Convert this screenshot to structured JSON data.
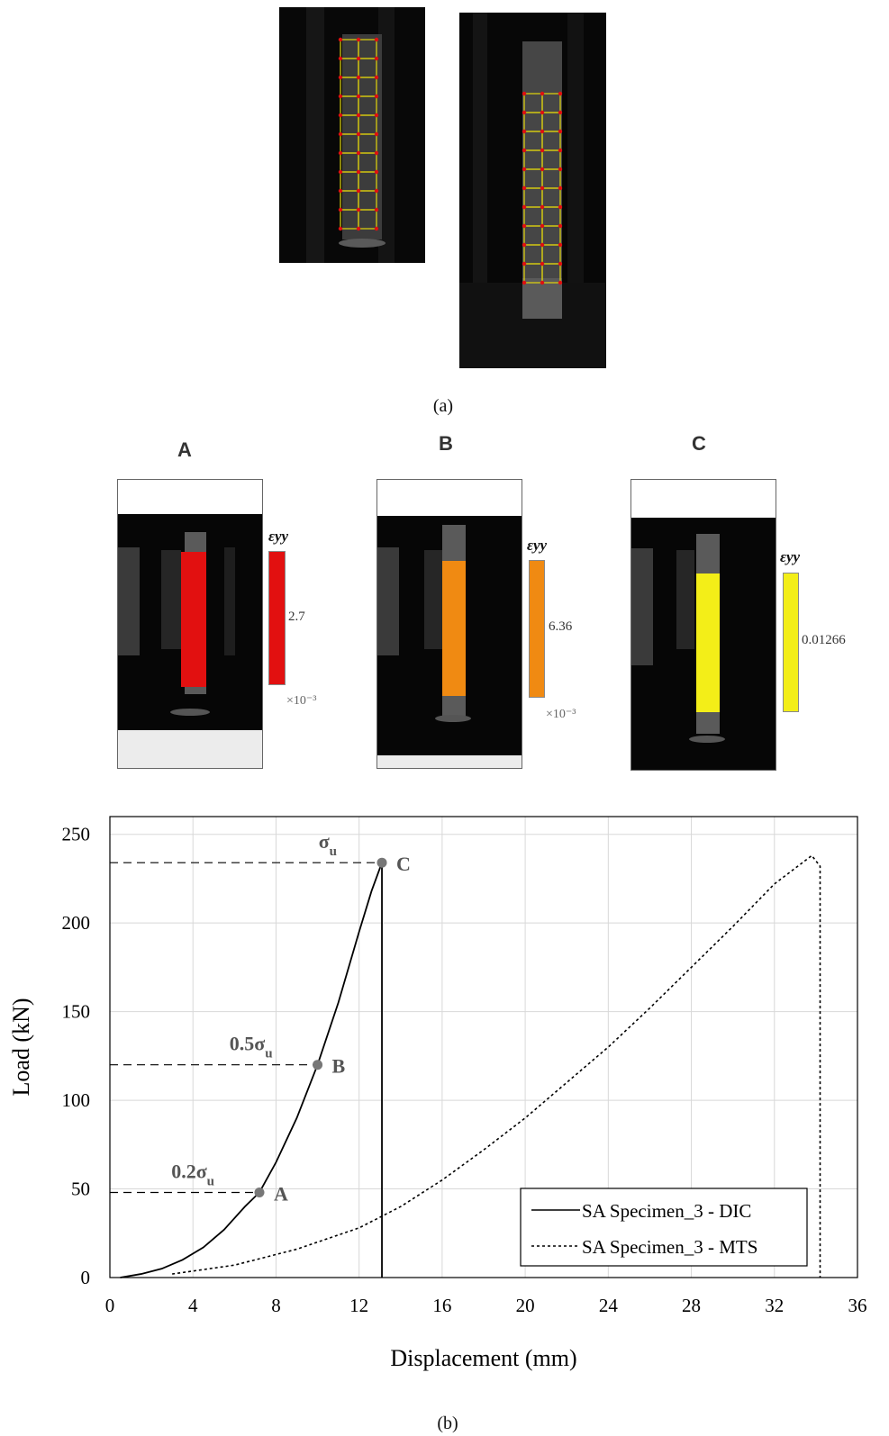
{
  "figure": {
    "caption_a": "(a)",
    "caption_b": "(b)",
    "panels": [
      {
        "label": "A",
        "colorbar_value": "2.7",
        "colorbar_multiplier": "×10⁻³",
        "strain_symbol": "εyy",
        "color": "#e21010"
      },
      {
        "label": "B",
        "colorbar_value": "6.36",
        "colorbar_multiplier": "×10⁻³",
        "strain_symbol": "εyy",
        "color": "#f08a12"
      },
      {
        "label": "C",
        "colorbar_value": "0.01266",
        "colorbar_multiplier": "",
        "strain_symbol": "εyy",
        "color": "#f3ee18"
      }
    ]
  },
  "chart_data": {
    "type": "line",
    "xlabel": "Displacement (mm)",
    "ylabel": "Load (kN)",
    "xlim": [
      0,
      36
    ],
    "ylim": [
      0,
      260
    ],
    "xticks": [
      0,
      4,
      8,
      12,
      16,
      20,
      24,
      28,
      32,
      36
    ],
    "yticks": [
      0,
      50,
      100,
      150,
      200,
      250
    ],
    "grid": true,
    "legend_position": "bottom-right",
    "series": [
      {
        "name": "SA Specimen_3 - DIC",
        "style": "solid",
        "x": [
          0.5,
          1.5,
          2.5,
          3.5,
          4.5,
          5.5,
          6.5,
          7.2,
          8,
          9,
          10,
          11,
          12,
          12.6,
          13.1,
          13.1
        ],
        "y": [
          0,
          2,
          5,
          10,
          17,
          27,
          40,
          48,
          65,
          90,
          120,
          155,
          195,
          218,
          234,
          0
        ]
      },
      {
        "name": "SA Specimen_3 - MTS",
        "style": "dotted",
        "x": [
          3,
          6,
          9,
          12,
          14,
          16,
          18,
          20,
          22,
          24,
          26,
          28,
          30,
          32,
          33.8,
          34.2,
          34.2
        ],
        "y": [
          2,
          7,
          16,
          28,
          40,
          55,
          72,
          90,
          110,
          130,
          152,
          175,
          198,
          222,
          238,
          232,
          0
        ]
      }
    ],
    "annotations": [
      {
        "label": "A",
        "x": 7.2,
        "y": 48,
        "level_label": "0.2σu"
      },
      {
        "label": "B",
        "x": 10.0,
        "y": 120,
        "level_label": "0.5σu"
      },
      {
        "label": "C",
        "x": 13.1,
        "y": 234,
        "level_label": "σu"
      }
    ]
  }
}
